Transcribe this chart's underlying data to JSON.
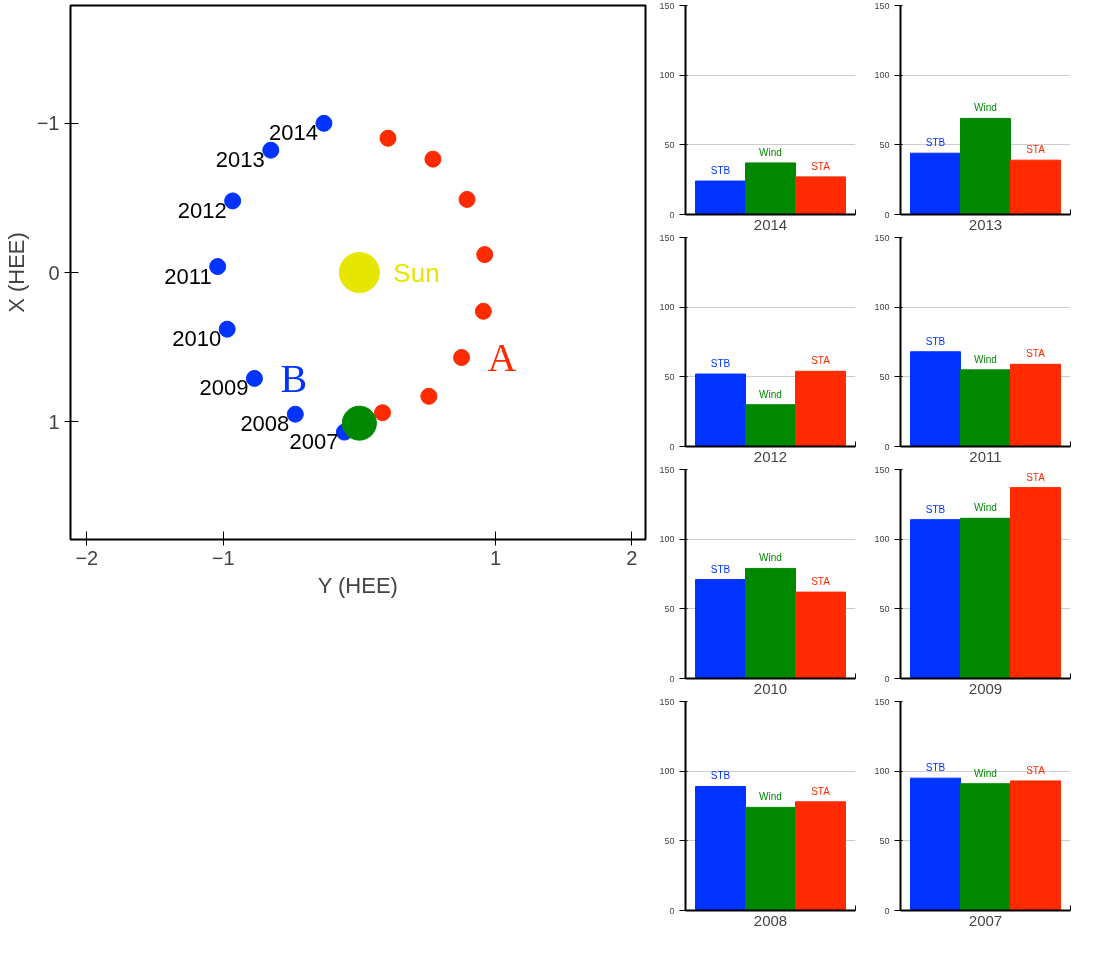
{
  "chart_data": [
    {
      "type": "scatter",
      "xlabel": "Y (HEE)",
      "ylabel": "X (HEE)",
      "xlim": [
        -2.12,
        2.1
      ],
      "ylim": [
        1.79,
        -1.79
      ],
      "xticks": [
        -2,
        -1,
        1,
        2
      ],
      "yticks": [
        -1,
        0,
        1
      ],
      "grid": false,
      "marker": "circle",
      "series": [
        {
          "name": "Sun",
          "color": "#e6e600",
          "x": [
            0.0
          ],
          "values": [
            0.0
          ]
        },
        {
          "name": "B",
          "color": "#0033ff",
          "x": [
            -0.11,
            -0.47,
            -0.77,
            -0.97,
            -1.04,
            -0.93,
            -0.65,
            -0.26
          ],
          "values": [
            1.07,
            0.95,
            0.71,
            0.38,
            -0.04,
            -0.48,
            -0.82,
            -1.0
          ]
        },
        {
          "name": "A",
          "color": "#ff2a00",
          "x": [
            0.17,
            0.51,
            0.75,
            0.91,
            0.92,
            0.79,
            0.54,
            0.21
          ],
          "values": [
            0.94,
            0.83,
            0.57,
            0.26,
            -0.12,
            -0.49,
            -0.76,
            -0.9
          ]
        },
        {
          "color": "#008800",
          "x": [
            0.0
          ],
          "values": [
            1.01
          ]
        }
      ],
      "annotations": [
        {
          "text": "2007",
          "x": -0.11,
          "y": 1.07
        },
        {
          "text": "2008",
          "x": -0.47,
          "y": 0.95
        },
        {
          "text": "2009",
          "x": -0.77,
          "y": 0.71
        },
        {
          "text": "2010",
          "x": -0.97,
          "y": 0.38
        },
        {
          "text": "2011",
          "x": -1.04,
          "y": -0.04
        },
        {
          "text": "2012",
          "x": -0.93,
          "y": -0.48
        },
        {
          "text": "2013",
          "x": -0.65,
          "y": -0.82
        },
        {
          "text": "2014",
          "x": -0.26,
          "y": -1.0
        }
      ]
    },
    {
      "type": "bar",
      "xlabel": "2014",
      "categories": [
        "STB",
        "Wind",
        "STA"
      ],
      "values": [
        24,
        37,
        27
      ],
      "colors": [
        "#0033ff",
        "#008800",
        "#ff2a00"
      ],
      "ylim": [
        0,
        150
      ],
      "yticks": [
        0,
        50,
        100,
        150
      ],
      "grid": "y",
      "tick_labels": "y"
    },
    {
      "type": "bar",
      "xlabel": "2013",
      "categories": [
        "STB",
        "Wind",
        "STA"
      ],
      "values": [
        44,
        69,
        39
      ],
      "colors": [
        "#0033ff",
        "#008800",
        "#ff2a00"
      ],
      "ylim": [
        0,
        150
      ],
      "yticks": [
        0,
        50,
        100,
        150
      ],
      "grid": "y",
      "tick_labels": "y"
    },
    {
      "type": "bar",
      "xlabel": "2012",
      "categories": [
        "STB",
        "Wind",
        "STA"
      ],
      "values": [
        52,
        30,
        54
      ],
      "colors": [
        "#0033ff",
        "#008800",
        "#ff2a00"
      ],
      "ylim": [
        0,
        150
      ],
      "yticks": [
        0,
        50,
        100,
        150
      ],
      "grid": "y",
      "tick_labels": "y"
    },
    {
      "type": "bar",
      "xlabel": "2011",
      "categories": [
        "STB",
        "Wind",
        "STA"
      ],
      "values": [
        68,
        55,
        59
      ],
      "colors": [
        "#0033ff",
        "#008800",
        "#ff2a00"
      ],
      "ylim": [
        0,
        150
      ],
      "yticks": [
        0,
        50,
        100,
        150
      ],
      "grid": "y",
      "tick_labels": "y"
    },
    {
      "type": "bar",
      "xlabel": "2010",
      "categories": [
        "STB",
        "Wind",
        "STA"
      ],
      "values": [
        71,
        79,
        62
      ],
      "colors": [
        "#0033ff",
        "#008800",
        "#ff2a00"
      ],
      "ylim": [
        0,
        150
      ],
      "yticks": [
        0,
        50,
        100,
        150
      ],
      "grid": "y",
      "tick_labels": "y"
    },
    {
      "type": "bar",
      "xlabel": "2009",
      "categories": [
        "STB",
        "Wind",
        "STA"
      ],
      "values": [
        114,
        115,
        137
      ],
      "colors": [
        "#0033ff",
        "#008800",
        "#ff2a00"
      ],
      "ylim": [
        0,
        150
      ],
      "yticks": [
        0,
        50,
        100,
        150
      ],
      "grid": "y",
      "tick_labels": "y"
    },
    {
      "type": "bar",
      "xlabel": "2008",
      "categories": [
        "STB",
        "Wind",
        "STA"
      ],
      "values": [
        89,
        74,
        78
      ],
      "colors": [
        "#0033ff",
        "#008800",
        "#ff2a00"
      ],
      "ylim": [
        0,
        150
      ],
      "yticks": [
        0,
        50,
        100,
        150
      ],
      "grid": "y",
      "tick_labels": "y"
    },
    {
      "type": "bar",
      "xlabel": "2007",
      "categories": [
        "STB",
        "Wind",
        "STA"
      ],
      "values": [
        95,
        91,
        93
      ],
      "colors": [
        "#0033ff",
        "#008800",
        "#ff2a00"
      ],
      "ylim": [
        0,
        150
      ],
      "yticks": [
        0,
        50,
        100,
        150
      ],
      "grid": "y",
      "tick_labels": "y"
    }
  ]
}
